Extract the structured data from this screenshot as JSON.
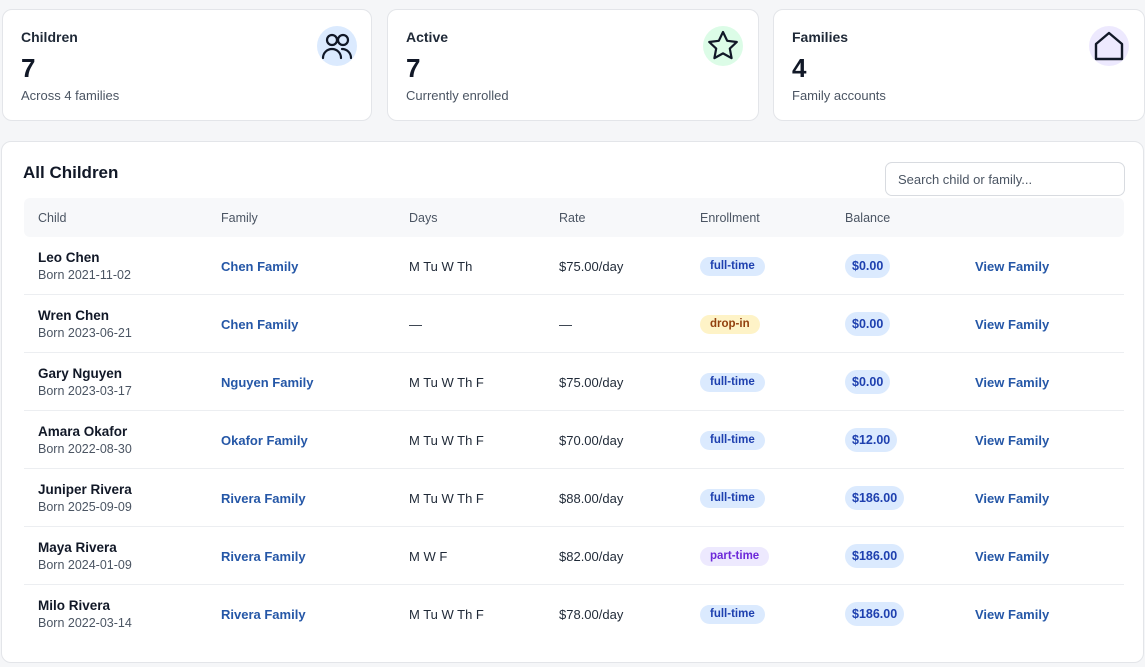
{
  "stats": [
    {
      "label": "Children",
      "value": "7",
      "sub": "Across 4 families",
      "icon": "users-icon"
    },
    {
      "label": "Active",
      "value": "7",
      "sub": "Currently enrolled",
      "icon": "star-icon"
    },
    {
      "label": "Families",
      "value": "4",
      "sub": "Family accounts",
      "icon": "house-icon"
    }
  ],
  "panel": {
    "title": "All Children",
    "search_placeholder": "Search child or family..."
  },
  "table": {
    "headers": {
      "child": "Child",
      "family": "Family",
      "days": "Days",
      "rate": "Rate",
      "enrollment": "Enrollment",
      "balance": "Balance"
    },
    "rows": [
      {
        "name": "Leo Chen",
        "born": "Born 2021-11-02",
        "family": "Chen Family",
        "days": "M Tu W Th",
        "rate": "$75.00/day",
        "enrollment": "full-time",
        "balance": "$0.00",
        "action": "View Family"
      },
      {
        "name": "Wren Chen",
        "born": "Born 2023-06-21",
        "family": "Chen Family",
        "days": "—",
        "rate": "—",
        "enrollment": "drop-in",
        "balance": "$0.00",
        "action": "View Family"
      },
      {
        "name": "Gary Nguyen",
        "born": "Born 2023-03-17",
        "family": "Nguyen Family",
        "days": "M Tu W Th F",
        "rate": "$75.00/day",
        "enrollment": "full-time",
        "balance": "$0.00",
        "action": "View Family"
      },
      {
        "name": "Amara Okafor",
        "born": "Born 2022-08-30",
        "family": "Okafor Family",
        "days": "M Tu W Th F",
        "rate": "$70.00/day",
        "enrollment": "full-time",
        "balance": "$12.00",
        "action": "View Family"
      },
      {
        "name": "Juniper Rivera",
        "born": "Born 2025-09-09",
        "family": "Rivera Family",
        "days": "M Tu W Th F",
        "rate": "$88.00/day",
        "enrollment": "full-time",
        "balance": "$186.00",
        "action": "View Family"
      },
      {
        "name": "Maya Rivera",
        "born": "Born 2024-01-09",
        "family": "Rivera Family",
        "days": "M W F",
        "rate": "$82.00/day",
        "enrollment": "part-time",
        "balance": "$186.00",
        "action": "View Family"
      },
      {
        "name": "Milo Rivera",
        "born": "Born 2022-03-14",
        "family": "Rivera Family",
        "days": "M Tu W Th F",
        "rate": "$78.00/day",
        "enrollment": "full-time",
        "balance": "$186.00",
        "action": "View Family"
      }
    ]
  },
  "colors": {
    "link": "#2557a7",
    "full_time_pill": "#dbeafe",
    "drop_in_pill": "#fef3c7",
    "part_time_pill": "#ede9fe",
    "balance_pill": "#dbeafe"
  }
}
